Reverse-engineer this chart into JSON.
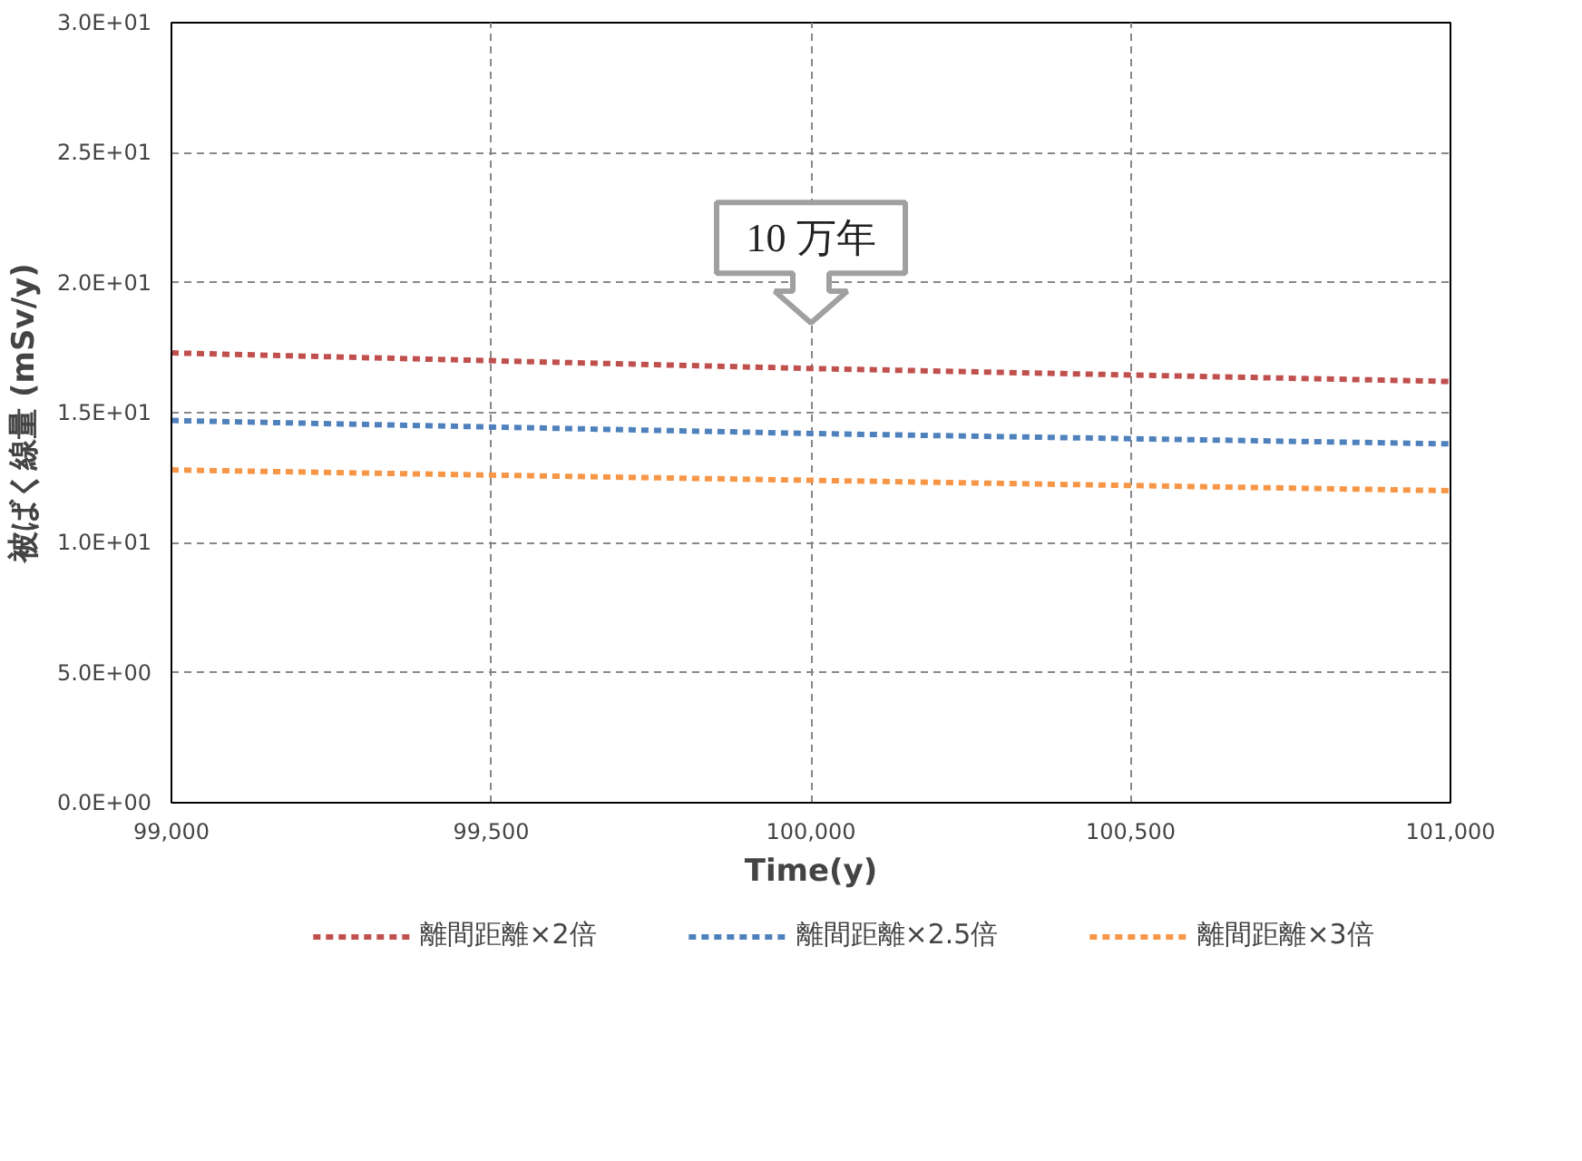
{
  "chart_data": {
    "type": "line",
    "xlabel": "Time(y)",
    "ylabel": "被ばく線量 (mSv/y)",
    "x": [
      99000,
      100000,
      101000
    ],
    "series": [
      {
        "name": "離間距離×2倍",
        "color": "#c0504d",
        "values": [
          17.3,
          16.7,
          16.2
        ]
      },
      {
        "name": "離間距離×2.5倍",
        "color": "#4f81bd",
        "values": [
          14.7,
          14.2,
          13.8
        ]
      },
      {
        "name": "離間距離×3倍",
        "color": "#f79646",
        "values": [
          12.8,
          12.4,
          12.0
        ]
      }
    ],
    "xlim": [
      99000,
      101000
    ],
    "xticks": [
      {
        "value": 99000,
        "label": "99,000"
      },
      {
        "value": 99500,
        "label": "99,500"
      },
      {
        "value": 100000,
        "label": "100,000"
      },
      {
        "value": 100500,
        "label": "100,500"
      },
      {
        "value": 101000,
        "label": "101,000"
      }
    ],
    "ylim": [
      0,
      30
    ],
    "yticks": [
      {
        "value": 0,
        "label": "0.0E+00"
      },
      {
        "value": 5,
        "label": "5.0E+00"
      },
      {
        "value": 10,
        "label": "1.0E+01"
      },
      {
        "value": 15,
        "label": "1.5E+01"
      },
      {
        "value": 20,
        "label": "2.0E+01"
      },
      {
        "value": 25,
        "label": "2.5E+01"
      },
      {
        "value": 30,
        "label": "3.0E+01"
      }
    ],
    "annotations": [
      "10 万年"
    ],
    "grid": true,
    "legend": "bottom",
    "line_style": "dashed",
    "marker": "none"
  }
}
